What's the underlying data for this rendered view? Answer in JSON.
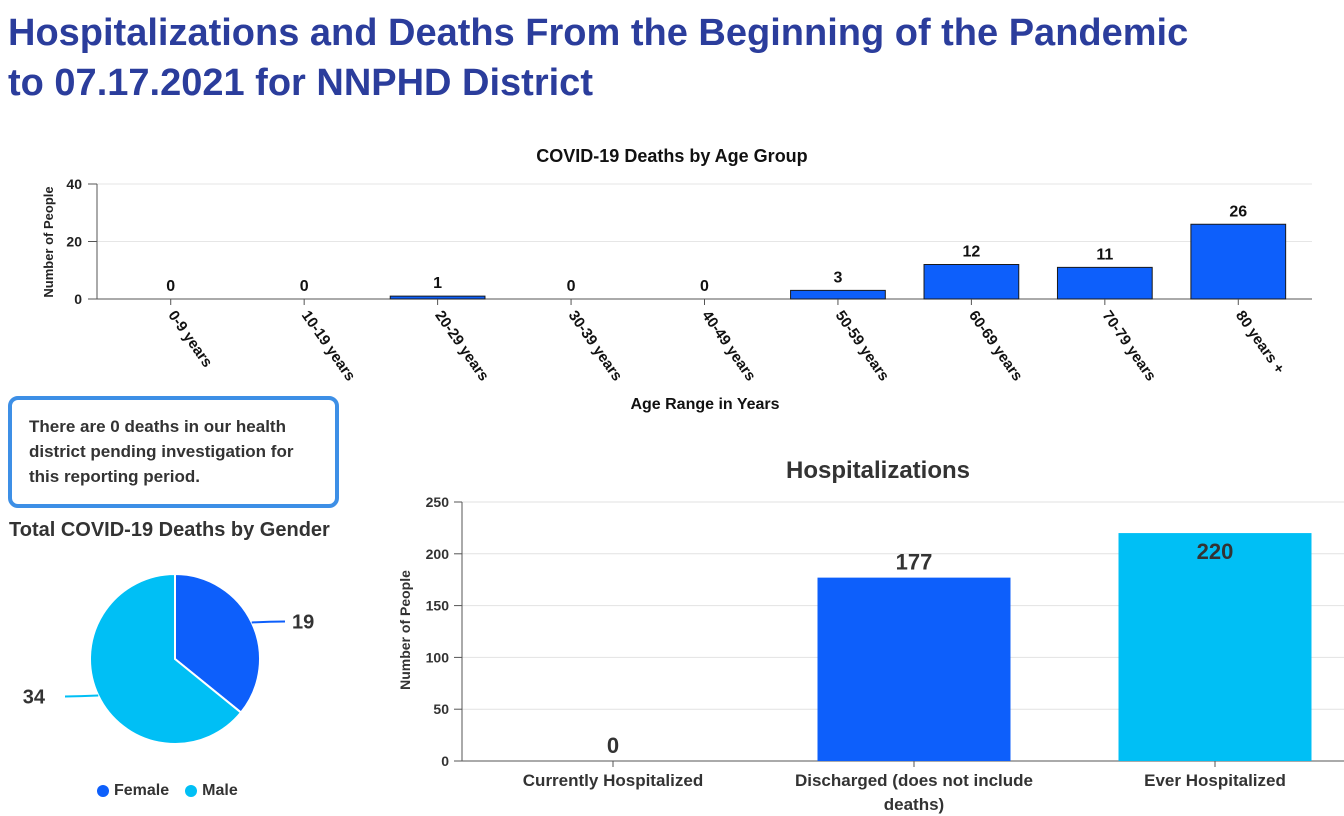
{
  "page": {
    "title_line1": "Hospitalizations and Deaths From the Beginning of the Pandemic",
    "title_line2": "to 07.17.2021 for NNPHD District"
  },
  "note": {
    "text": "There are 0 deaths in our health district pending investigation for this reporting period."
  },
  "colors": {
    "title": "#2b3d9c",
    "female": "#0d5ffb",
    "male": "#00bff5",
    "note_border": "#3d8fe6"
  },
  "chart_data": [
    {
      "id": "age",
      "type": "bar",
      "title": "COVID-19 Deaths by Age Group",
      "xlabel": "Age Range in Years",
      "ylabel": "Number of People",
      "categories": [
        "0-9 years",
        "10-19 years",
        "20-29 years",
        "30-39 years",
        "40-49 years",
        "50-59 years",
        "60-69 years",
        "70-79 years",
        "80 years +"
      ],
      "values": [
        0,
        0,
        1,
        0,
        0,
        3,
        12,
        11,
        26
      ],
      "ylim": [
        0,
        40
      ],
      "yticks": [
        0,
        20,
        40
      ],
      "grid": true,
      "color": "#0d5ffb"
    },
    {
      "id": "hospitalizations",
      "type": "bar",
      "title": "Hospitalizations",
      "xlabel": "",
      "ylabel": "Number of People",
      "categories": [
        "Currently Hospitalized",
        "Discharged (does not include deaths)",
        "Ever Hospitalized"
      ],
      "values": [
        0,
        177,
        220
      ],
      "bar_colors": [
        "#0d5ffb",
        "#0d5ffb",
        "#00bff5"
      ],
      "ylim": [
        0,
        250
      ],
      "yticks": [
        0,
        50,
        100,
        150,
        200,
        250
      ],
      "grid": true
    },
    {
      "id": "gender",
      "type": "pie",
      "title": "Total COVID-19 Deaths by Gender",
      "labels": [
        "Female",
        "Male"
      ],
      "values": [
        19,
        34
      ],
      "colors": [
        "#0d5ffb",
        "#00bff5"
      ],
      "legend": "bottom"
    }
  ]
}
